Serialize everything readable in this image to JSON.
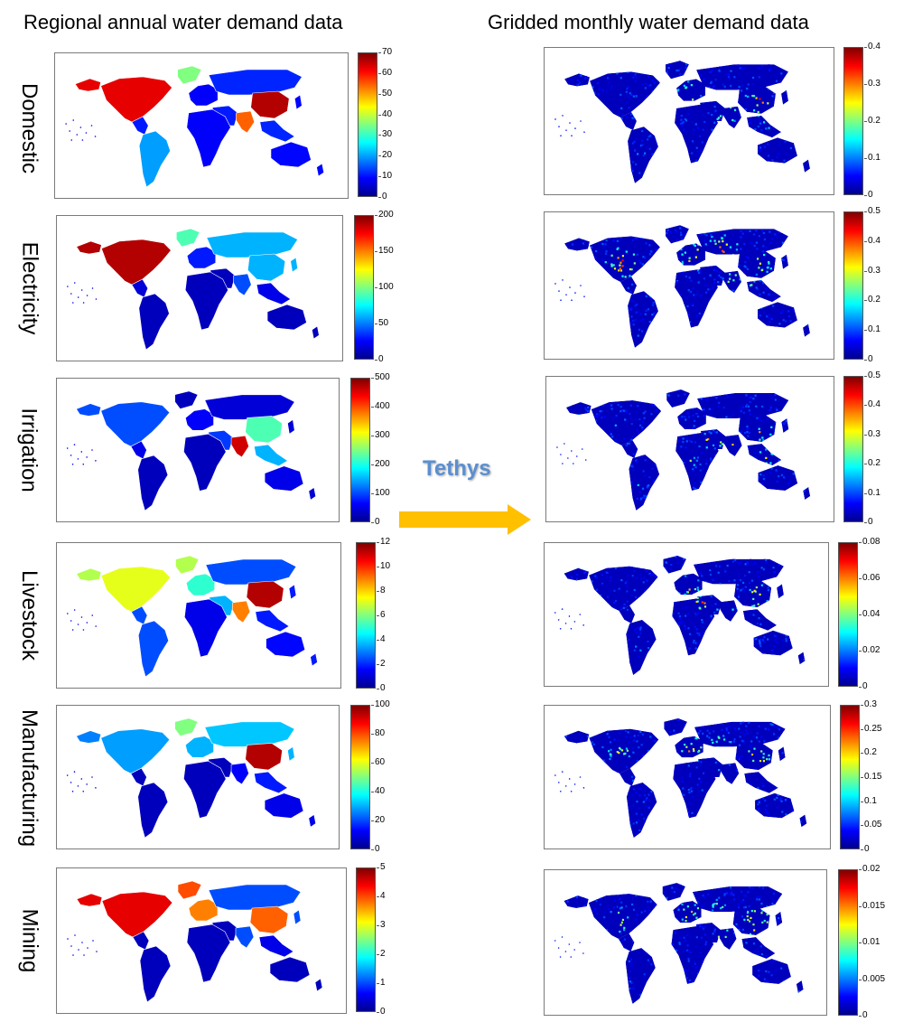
{
  "headers": {
    "left": "Regional annual water demand data",
    "right": "Gridded monthly water demand data"
  },
  "arrow_label": "Tethys",
  "arrow_color": "#ffc000",
  "tethys_color": "#5b8fd0",
  "colormap": "jet",
  "rows": [
    {
      "label": "Domestic",
      "regional_ticks": [
        "70",
        "60",
        "50",
        "40",
        "30",
        "20",
        "10",
        "0"
      ],
      "gridded_ticks": [
        "0.4",
        "0.3",
        "0.2",
        "0.1",
        "0"
      ]
    },
    {
      "label": "Electricity",
      "regional_ticks": [
        "200",
        "150",
        "100",
        "50",
        "0"
      ],
      "gridded_ticks": [
        "0.5",
        "0.4",
        "0.3",
        "0.2",
        "0.1",
        "0"
      ]
    },
    {
      "label": "Irrigation",
      "regional_ticks": [
        "500",
        "400",
        "300",
        "200",
        "100",
        "0"
      ],
      "gridded_ticks": [
        "0.5",
        "0.4",
        "0.3",
        "0.2",
        "0.1",
        "0"
      ]
    },
    {
      "label": "Livestock",
      "regional_ticks": [
        "12",
        "10",
        "8",
        "6",
        "4",
        "2",
        "0"
      ],
      "gridded_ticks": [
        "0.08",
        "0.06",
        "0.04",
        "0.02",
        "0"
      ]
    },
    {
      "label": "Manufacturing",
      "regional_ticks": [
        "100",
        "80",
        "60",
        "40",
        "20",
        "0"
      ],
      "gridded_ticks": [
        "0.3",
        "0.25",
        "0.2",
        "0.15",
        "0.1",
        "0.05",
        "0"
      ]
    },
    {
      "label": "Mining",
      "regional_ticks": [
        "5",
        "4",
        "3",
        "2",
        "1",
        "0"
      ],
      "gridded_ticks": [
        "0.02",
        "0.015",
        "0.01",
        "0.005",
        "0"
      ]
    }
  ]
}
